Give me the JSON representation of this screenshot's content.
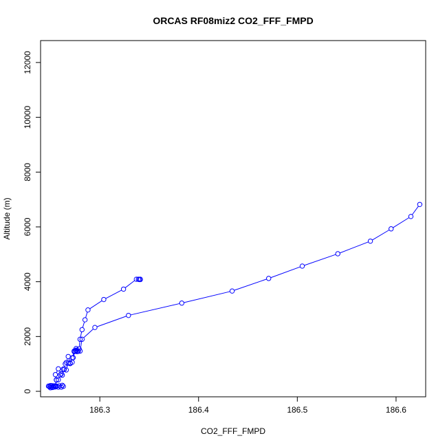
{
  "chart_data": {
    "type": "line",
    "title": "ORCAS RF08miz2 CO2_FFF_FMPD",
    "xlabel": "CO2_FFF_FMPD",
    "ylabel": "Altitude (m)",
    "xlim": [
      186.24,
      186.63
    ],
    "ylim": [
      -200,
      12800
    ],
    "x_ticks": [
      186.3,
      186.4,
      186.5,
      186.6
    ],
    "x_tick_labels": [
      "186.3",
      "186.4",
      "186.5",
      "186.6"
    ],
    "y_ticks": [
      0,
      2000,
      4000,
      6000,
      8000,
      10000,
      12000
    ],
    "y_tick_labels": [
      "0",
      "2000",
      "4000",
      "6000",
      "8000",
      "10000",
      "12000"
    ],
    "grid": false,
    "marker": "open-circle",
    "color": "#0000ff",
    "series": [
      {
        "x": [
          186.624,
          186.615,
          186.595,
          186.574,
          186.541,
          186.505,
          186.471,
          186.434,
          186.383,
          186.329,
          186.295,
          186.282,
          186.28,
          186.276,
          186.278,
          186.274,
          186.272,
          186.27,
          186.268,
          186.266,
          186.264,
          186.262,
          186.26,
          186.258,
          186.256,
          186.255,
          186.253,
          186.252,
          186.25,
          186.249,
          186.248,
          186.251,
          186.254,
          186.256,
          186.258,
          186.261,
          186.263,
          186.262,
          186.259,
          186.256,
          186.253,
          186.251,
          186.249,
          186.25,
          186.253,
          186.255,
          186.256,
          186.255,
          186.258,
          186.261,
          186.263,
          186.265,
          186.266,
          186.268,
          186.27,
          186.272,
          186.273,
          186.275,
          186.277,
          186.278,
          186.276,
          186.274,
          186.276,
          186.278,
          186.279,
          186.28,
          186.282,
          186.285,
          186.288,
          186.304,
          186.324,
          186.337,
          186.339,
          186.34,
          186.341,
          186.341
        ],
        "y": [
          6820,
          6380,
          5930,
          5480,
          5020,
          4570,
          4120,
          3660,
          3220,
          2770,
          2330,
          1900,
          1470,
          1480,
          1460,
          1450,
          1220,
          1030,
          1030,
          780,
          800,
          590,
          600,
          420,
          420,
          160,
          150,
          140,
          130,
          170,
          190,
          210,
          200,
          190,
          150,
          150,
          180,
          220,
          200,
          180,
          150,
          160,
          180,
          210,
          200,
          190,
          410,
          610,
          820,
          640,
          810,
          1000,
          1050,
          1270,
          1010,
          1060,
          1230,
          1460,
          1450,
          1460,
          1500,
          1470,
          1560,
          1460,
          1550,
          1900,
          2250,
          2610,
          2970,
          3350,
          3730,
          4090,
          4090,
          4080,
          4090,
          4080
        ]
      }
    ]
  }
}
